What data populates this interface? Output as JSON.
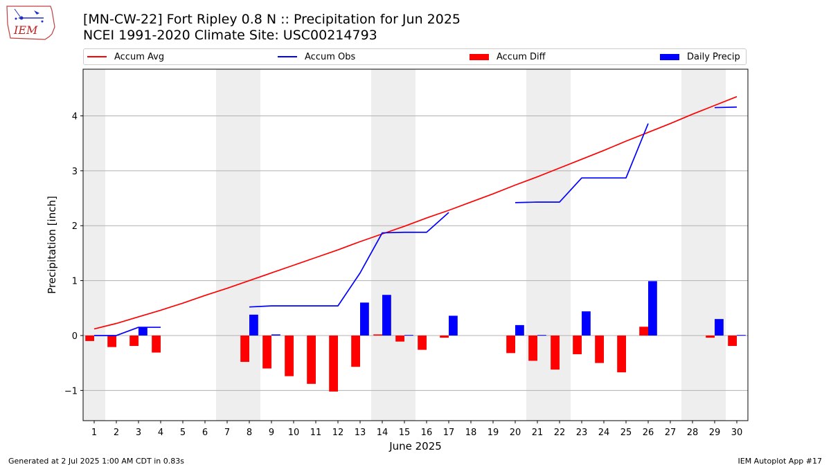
{
  "header": {
    "title_line1": "[MN-CW-22] Fort Ripley 0.8 N :: Precipitation for Jun 2025",
    "title_line2": "NCEI 1991-2020 Climate Site: USC00214793",
    "logo_text": "IEM"
  },
  "legend": {
    "accum_avg": "Accum Avg",
    "accum_obs": "Accum Obs",
    "accum_diff": "Accum Diff",
    "daily_precip": "Daily Precip"
  },
  "footer": {
    "left": "Generated at 2 Jul 2025 1:00 AM CDT in 0.83s",
    "right": "IEM Autoplot App #17"
  },
  "colors": {
    "avg": "#ff0000",
    "obs": "#0000ff",
    "diff": "#ff0000",
    "daily": "#0000ff",
    "weekend_shade": "#eeeeee",
    "grid": "#b0b0b0"
  },
  "chart_data": {
    "type": "bar",
    "xlabel": "June 2025",
    "ylabel": "Precipitation [inch]",
    "x": [
      1,
      2,
      3,
      4,
      5,
      6,
      7,
      8,
      9,
      10,
      11,
      12,
      13,
      14,
      15,
      16,
      17,
      18,
      19,
      20,
      21,
      22,
      23,
      24,
      25,
      26,
      27,
      28,
      29,
      30
    ],
    "xlim": [
      0.5,
      30.5
    ],
    "ylim": [
      -1.55,
      4.85
    ],
    "yticks": [
      -1,
      0,
      1,
      2,
      3,
      4
    ],
    "ytick_labels": [
      "−1",
      "0",
      "1",
      "2",
      "3",
      "4"
    ],
    "grid": "horizontal",
    "legend_position": "top",
    "shaded_weekends": [
      [
        0.5,
        1.5
      ],
      [
        6.5,
        8.5
      ],
      [
        13.5,
        15.5
      ],
      [
        20.5,
        22.5
      ],
      [
        27.5,
        29.5
      ]
    ],
    "series": [
      {
        "name": "Accum Avg",
        "type": "line",
        "values": [
          0.12,
          0.22,
          0.34,
          0.46,
          0.59,
          0.73,
          0.86,
          1.0,
          1.14,
          1.28,
          1.42,
          1.56,
          1.71,
          1.85,
          1.99,
          2.14,
          2.28,
          2.43,
          2.58,
          2.74,
          2.89,
          3.05,
          3.21,
          3.37,
          3.54,
          3.7,
          3.86,
          4.03,
          4.19,
          4.35
        ]
      },
      {
        "name": "Accum Obs",
        "type": "line",
        "values": [
          0.0,
          0.0,
          0.15,
          0.15,
          null,
          null,
          null,
          0.52,
          0.54,
          0.54,
          0.54,
          0.54,
          1.14,
          1.87,
          1.88,
          1.88,
          2.24,
          null,
          null,
          2.42,
          2.43,
          2.43,
          2.87,
          2.87,
          2.87,
          3.86,
          null,
          null,
          4.15,
          4.16
        ]
      },
      {
        "name": "Accum Diff",
        "type": "bar",
        "values": [
          -0.1,
          -0.21,
          -0.19,
          -0.31,
          null,
          null,
          null,
          -0.48,
          -0.6,
          -0.74,
          -0.88,
          -1.02,
          -0.57,
          0.02,
          -0.11,
          -0.26,
          -0.04,
          null,
          null,
          -0.32,
          -0.46,
          -0.62,
          -0.34,
          -0.5,
          -0.67,
          0.16,
          null,
          null,
          -0.04,
          -0.19
        ]
      },
      {
        "name": "Daily Precip",
        "type": "bar",
        "values": [
          0,
          0,
          0.15,
          0,
          null,
          null,
          null,
          0.38,
          0.02,
          0,
          0,
          0,
          0.6,
          0.74,
          0.01,
          0,
          0.36,
          null,
          null,
          0.19,
          0.01,
          0,
          0.44,
          0,
          0,
          0.99,
          null,
          null,
          0.3,
          0.01
        ]
      }
    ]
  }
}
